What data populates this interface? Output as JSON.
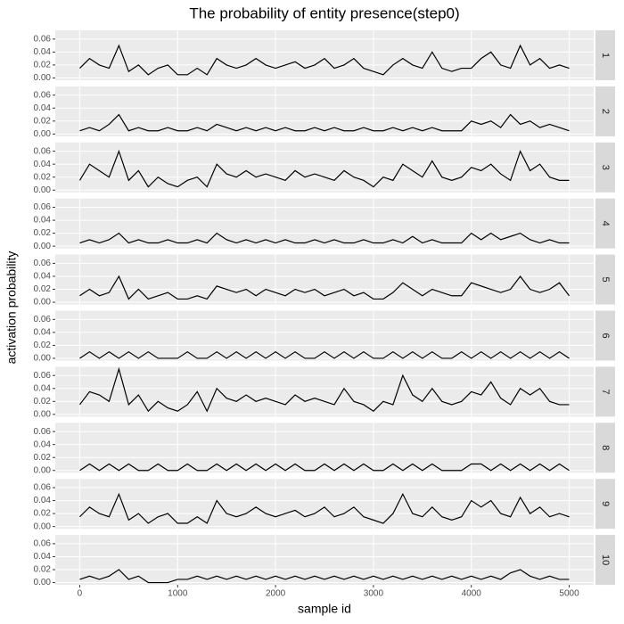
{
  "chart_data": {
    "type": "line",
    "facets": true,
    "title": "The probability of entity presence(step0)",
    "x_label": "sample id",
    "y_label": "activation probability",
    "xlim": [
      -250,
      5250
    ],
    "xticks": [
      0,
      1000,
      2000,
      3000,
      4000,
      5000
    ],
    "ylim": [
      -0.0035,
      0.0735
    ],
    "yticks": [
      {
        "value": 0,
        "label": "0.00"
      },
      {
        "value": 0.02,
        "label": "0.02"
      },
      {
        "value": 0.04,
        "label": "0.04"
      },
      {
        "value": 0.06,
        "label": "0.06"
      }
    ],
    "grid": true,
    "x": [
      0,
      100,
      200,
      300,
      400,
      500,
      600,
      700,
      800,
      900,
      1000,
      1100,
      1200,
      1300,
      1400,
      1500,
      1600,
      1700,
      1800,
      1900,
      2000,
      2100,
      2200,
      2300,
      2400,
      2500,
      2600,
      2700,
      2800,
      2900,
      3000,
      3100,
      3200,
      3300,
      3400,
      3500,
      3600,
      3700,
      3800,
      3900,
      4000,
      4100,
      4200,
      4300,
      4400,
      4500,
      4600,
      4700,
      4800,
      4900,
      5000
    ],
    "series": [
      {
        "name": "1",
        "color": "#000000",
        "values": [
          0.015,
          0.03,
          0.02,
          0.015,
          0.05,
          0.01,
          0.02,
          0.005,
          0.015,
          0.02,
          0.005,
          0.005,
          0.015,
          0.005,
          0.03,
          0.02,
          0.015,
          0.02,
          0.03,
          0.02,
          0.015,
          0.02,
          0.025,
          0.015,
          0.02,
          0.03,
          0.015,
          0.02,
          0.03,
          0.015,
          0.01,
          0.005,
          0.02,
          0.03,
          0.02,
          0.015,
          0.04,
          0.015,
          0.01,
          0.015,
          0.015,
          0.03,
          0.04,
          0.02,
          0.015,
          0.05,
          0.02,
          0.03,
          0.015,
          0.02,
          0.015
        ]
      },
      {
        "name": "2",
        "color": "#000000",
        "values": [
          0.005,
          0.01,
          0.005,
          0.015,
          0.03,
          0.005,
          0.01,
          0.005,
          0.005,
          0.01,
          0.005,
          0.005,
          0.01,
          0.005,
          0.015,
          0.01,
          0.005,
          0.01,
          0.005,
          0.01,
          0.005,
          0.01,
          0.005,
          0.005,
          0.01,
          0.005,
          0.01,
          0.005,
          0.005,
          0.01,
          0.005,
          0.005,
          0.01,
          0.005,
          0.01,
          0.005,
          0.01,
          0.005,
          0.005,
          0.005,
          0.02,
          0.015,
          0.02,
          0.01,
          0.03,
          0.015,
          0.02,
          0.01,
          0.015,
          0.01,
          0.005
        ]
      },
      {
        "name": "3",
        "color": "#000000",
        "values": [
          0.015,
          0.04,
          0.03,
          0.02,
          0.06,
          0.015,
          0.03,
          0.005,
          0.02,
          0.01,
          0.005,
          0.015,
          0.02,
          0.005,
          0.04,
          0.025,
          0.02,
          0.03,
          0.02,
          0.025,
          0.02,
          0.015,
          0.03,
          0.02,
          0.025,
          0.02,
          0.015,
          0.03,
          0.02,
          0.015,
          0.005,
          0.02,
          0.015,
          0.04,
          0.03,
          0.02,
          0.045,
          0.02,
          0.015,
          0.02,
          0.035,
          0.03,
          0.04,
          0.025,
          0.015,
          0.06,
          0.03,
          0.04,
          0.02,
          0.015,
          0.015
        ]
      },
      {
        "name": "4",
        "color": "#000000",
        "values": [
          0.005,
          0.01,
          0.005,
          0.01,
          0.02,
          0.005,
          0.01,
          0.005,
          0.005,
          0.01,
          0.005,
          0.005,
          0.01,
          0.005,
          0.02,
          0.01,
          0.005,
          0.01,
          0.005,
          0.01,
          0.005,
          0.01,
          0.005,
          0.005,
          0.01,
          0.005,
          0.01,
          0.005,
          0.005,
          0.01,
          0.005,
          0.005,
          0.01,
          0.005,
          0.015,
          0.005,
          0.01,
          0.005,
          0.005,
          0.005,
          0.02,
          0.01,
          0.02,
          0.01,
          0.015,
          0.02,
          0.01,
          0.005,
          0.01,
          0.005,
          0.005
        ]
      },
      {
        "name": "5",
        "color": "#000000",
        "values": [
          0.01,
          0.02,
          0.01,
          0.015,
          0.04,
          0.005,
          0.02,
          0.005,
          0.01,
          0.015,
          0.005,
          0.005,
          0.01,
          0.005,
          0.025,
          0.02,
          0.015,
          0.02,
          0.01,
          0.02,
          0.015,
          0.01,
          0.02,
          0.015,
          0.02,
          0.01,
          0.015,
          0.02,
          0.01,
          0.015,
          0.005,
          0.005,
          0.015,
          0.03,
          0.02,
          0.01,
          0.02,
          0.015,
          0.01,
          0.01,
          0.03,
          0.025,
          0.02,
          0.015,
          0.02,
          0.04,
          0.02,
          0.015,
          0.02,
          0.03,
          0.01
        ]
      },
      {
        "name": "6",
        "color": "#000000",
        "values": [
          0,
          0.01,
          0,
          0.01,
          0,
          0.01,
          0,
          0.01,
          0,
          0,
          0,
          0.01,
          0,
          0,
          0.01,
          0,
          0.01,
          0,
          0.01,
          0,
          0.01,
          0,
          0.01,
          0,
          0,
          0.01,
          0,
          0.01,
          0,
          0.01,
          0,
          0,
          0.01,
          0,
          0.01,
          0,
          0.01,
          0,
          0,
          0.01,
          0,
          0.01,
          0,
          0.01,
          0,
          0.01,
          0,
          0.01,
          0,
          0.01,
          0
        ]
      },
      {
        "name": "7",
        "color": "#000000",
        "values": [
          0.015,
          0.035,
          0.03,
          0.02,
          0.07,
          0.015,
          0.03,
          0.005,
          0.02,
          0.01,
          0.005,
          0.015,
          0.035,
          0.005,
          0.04,
          0.025,
          0.02,
          0.03,
          0.02,
          0.025,
          0.02,
          0.015,
          0.03,
          0.02,
          0.025,
          0.02,
          0.015,
          0.04,
          0.02,
          0.015,
          0.005,
          0.02,
          0.015,
          0.06,
          0.03,
          0.02,
          0.04,
          0.02,
          0.015,
          0.02,
          0.035,
          0.03,
          0.05,
          0.025,
          0.015,
          0.04,
          0.03,
          0.04,
          0.02,
          0.015,
          0.015
        ]
      },
      {
        "name": "8",
        "color": "#000000",
        "values": [
          0,
          0.01,
          0,
          0.01,
          0,
          0.01,
          0,
          0,
          0.01,
          0,
          0,
          0.01,
          0,
          0,
          0.01,
          0,
          0.01,
          0,
          0.01,
          0,
          0.01,
          0,
          0.01,
          0,
          0,
          0.01,
          0,
          0.01,
          0,
          0.01,
          0,
          0,
          0.01,
          0,
          0.01,
          0,
          0.01,
          0,
          0,
          0,
          0.01,
          0.01,
          0,
          0.01,
          0,
          0.01,
          0,
          0.01,
          0,
          0.01,
          0
        ]
      },
      {
        "name": "9",
        "color": "#000000",
        "values": [
          0.015,
          0.03,
          0.02,
          0.015,
          0.05,
          0.01,
          0.02,
          0.005,
          0.015,
          0.02,
          0.005,
          0.005,
          0.015,
          0.005,
          0.04,
          0.02,
          0.015,
          0.02,
          0.03,
          0.02,
          0.015,
          0.02,
          0.025,
          0.015,
          0.02,
          0.03,
          0.015,
          0.02,
          0.03,
          0.015,
          0.01,
          0.005,
          0.02,
          0.05,
          0.02,
          0.015,
          0.03,
          0.015,
          0.01,
          0.015,
          0.04,
          0.03,
          0.04,
          0.02,
          0.015,
          0.045,
          0.02,
          0.03,
          0.015,
          0.02,
          0.015
        ]
      },
      {
        "name": "10",
        "color": "#000000",
        "values": [
          0.005,
          0.01,
          0.005,
          0.01,
          0.02,
          0.005,
          0.01,
          0,
          0,
          0,
          0.005,
          0.005,
          0.01,
          0.005,
          0.01,
          0.005,
          0.01,
          0.005,
          0.01,
          0.005,
          0.01,
          0.005,
          0.01,
          0.005,
          0.01,
          0.005,
          0.01,
          0.005,
          0.01,
          0.005,
          0.01,
          0.005,
          0.01,
          0.005,
          0.01,
          0.005,
          0.01,
          0.005,
          0.01,
          0.005,
          0.01,
          0.005,
          0.01,
          0.005,
          0.015,
          0.02,
          0.01,
          0.005,
          0.01,
          0.005,
          0.005
        ]
      }
    ]
  }
}
